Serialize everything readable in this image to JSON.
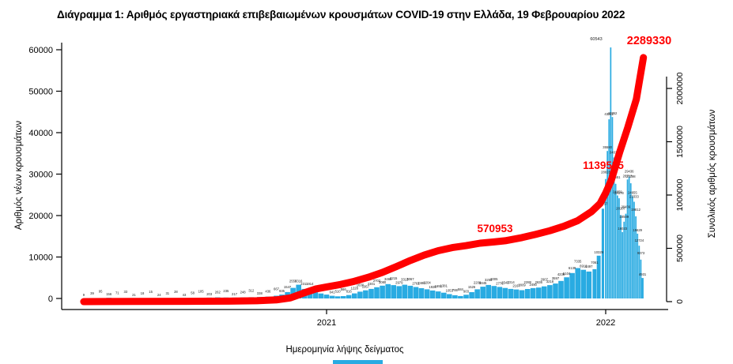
{
  "title": "Διάγραμμα 1: Αριθμός εργαστηριακά επιβεβαιωμένων κρουσμάτων COVID-19 στην Ελλάδα, 19 Φεβρουαρίου 2022",
  "colors": {
    "bar": "#29ABE2",
    "line": "#FF0000",
    "annotation": "#FF0000",
    "text": "#000000",
    "label": "#1a1a1a"
  },
  "axes": {
    "left": {
      "label": "Αριθμός νέων κρουσμάτων",
      "ticks": [
        0,
        10000,
        20000,
        30000,
        40000,
        50000,
        60000
      ]
    },
    "right": {
      "label": "Συνολικός αριθμός κρουσμάτων",
      "ticks": [
        0,
        500000,
        1000000,
        1500000,
        2000000
      ]
    },
    "bottom": {
      "label": "Ημερομηνία λήψης δείγματος",
      "ticks": [
        2021,
        2022
      ]
    }
  },
  "annotations": [
    {
      "id": "milestone-sep-2021",
      "text": "570953"
    },
    {
      "id": "milestone-jan-2022",
      "text": "1139535"
    },
    {
      "id": "total-final",
      "text": "2289330"
    },
    {
      "id": "peak-daily",
      "text": "60543"
    }
  ],
  "chart_data": {
    "type": "bar+line",
    "title": "Διάγραμμα 1: Αριθμός εργαστηριακά επιβεβαιωμένων κρουσμάτων COVID-19 στην Ελλάδα, 19 Φεβρουαρίου 2022",
    "xlabel": "Ημερομηνία λήψης δείγματος",
    "x_unit": "decimal_year",
    "x_range": [
      2020.13,
      2022.135
    ],
    "x_ticks": [
      2021,
      2022
    ],
    "grid": false,
    "legend": "none",
    "bars": {
      "name": "Αριθμός νέων κρουσμάτων",
      "axis": "left",
      "ylim": [
        0,
        60000
      ],
      "points": [
        [
          2020.13,
          9
        ],
        [
          2020.16,
          39
        ],
        [
          2020.19,
          95
        ],
        [
          2020.22,
          156
        ],
        [
          2020.25,
          71
        ],
        [
          2020.28,
          33
        ],
        [
          2020.31,
          21
        ],
        [
          2020.34,
          18
        ],
        [
          2020.37,
          15
        ],
        [
          2020.4,
          24
        ],
        [
          2020.43,
          31
        ],
        [
          2020.46,
          28
        ],
        [
          2020.49,
          43
        ],
        [
          2020.52,
          58
        ],
        [
          2020.55,
          105
        ],
        [
          2020.58,
          203
        ],
        [
          2020.61,
          262
        ],
        [
          2020.64,
          235
        ],
        [
          2020.67,
          217
        ],
        [
          2020.7,
          248
        ],
        [
          2020.73,
          312
        ],
        [
          2020.76,
          338
        ],
        [
          2020.79,
          436
        ],
        [
          2020.82,
          667
        ],
        [
          2020.84,
          935
        ],
        [
          2020.86,
          1547
        ],
        [
          2020.88,
          2556
        ],
        [
          2020.9,
          3316
        ],
        [
          2020.92,
          2311
        ],
        [
          2020.94,
          1914
        ],
        [
          2020.96,
          1499
        ],
        [
          2020.98,
          1192
        ],
        [
          2021.0,
          928
        ],
        [
          2021.02,
          641
        ],
        [
          2021.04,
          510
        ],
        [
          2021.06,
          566
        ],
        [
          2021.08,
          816
        ],
        [
          2021.1,
          1228
        ],
        [
          2021.12,
          1630
        ],
        [
          2021.14,
          1957
        ],
        [
          2021.16,
          2301
        ],
        [
          2021.18,
          2702
        ],
        [
          2021.2,
          3080
        ],
        [
          2021.22,
          3465
        ],
        [
          2021.24,
          3215
        ],
        [
          2021.26,
          2979
        ],
        [
          2021.28,
          3313
        ],
        [
          2021.3,
          3067
        ],
        [
          2021.32,
          2761
        ],
        [
          2021.34,
          2480
        ],
        [
          2021.36,
          2204
        ],
        [
          2021.38,
          1926
        ],
        [
          2021.4,
          1692
        ],
        [
          2021.42,
          1381
        ],
        [
          2021.44,
          1053
        ],
        [
          2021.46,
          788
        ],
        [
          2021.48,
          584
        ],
        [
          2021.5,
          903
        ],
        [
          2021.52,
          1526
        ],
        [
          2021.54,
          2206
        ],
        [
          2021.56,
          2845
        ],
        [
          2021.58,
          3255
        ],
        [
          2021.6,
          3005
        ],
        [
          2021.62,
          2776
        ],
        [
          2021.64,
          2541
        ],
        [
          2021.66,
          2314
        ],
        [
          2021.68,
          2167
        ],
        [
          2021.7,
          2009
        ],
        [
          2021.72,
          2288
        ],
        [
          2021.74,
          2490
        ],
        [
          2021.76,
          2636
        ],
        [
          2021.78,
          2907
        ],
        [
          2021.8,
          3218
        ],
        [
          2021.82,
          3597
        ],
        [
          2021.84,
          4238
        ],
        [
          2021.86,
          5104
        ],
        [
          2021.88,
          6139
        ],
        [
          2021.9,
          7335
        ],
        [
          2021.92,
          6912
        ],
        [
          2021.94,
          6497
        ],
        [
          2021.96,
          7061
        ],
        [
          2021.975,
          10329
        ],
        [
          2021.99,
          21657
        ],
        [
          2022.0,
          28828
        ],
        [
          2022.006,
          35580
        ],
        [
          2022.012,
          43222
        ],
        [
          2022.018,
          60543
        ],
        [
          2022.024,
          43762
        ],
        [
          2022.03,
          34011
        ],
        [
          2022.036,
          27651
        ],
        [
          2022.042,
          24850
        ],
        [
          2022.048,
          24178
        ],
        [
          2022.054,
          20107
        ],
        [
          2022.06,
          16023
        ],
        [
          2022.066,
          18509
        ],
        [
          2022.072,
          20436
        ],
        [
          2022.078,
          28712
        ],
        [
          2022.084,
          29436
        ],
        [
          2022.09,
          27798
        ],
        [
          2022.096,
          24655
        ],
        [
          2022.102,
          23333
        ],
        [
          2022.108,
          19812
        ],
        [
          2022.114,
          15629
        ],
        [
          2022.12,
          12724
        ],
        [
          2022.126,
          9373
        ],
        [
          2022.132,
          4931
        ]
      ]
    },
    "line": {
      "name": "Συνολικός αριθμός κρουσμάτων",
      "axis": "right",
      "ylim": [
        0,
        2000000
      ],
      "points": [
        [
          2020.13,
          0
        ],
        [
          2020.3,
          1700
        ],
        [
          2020.5,
          3100
        ],
        [
          2020.65,
          4500
        ],
        [
          2020.75,
          8000
        ],
        [
          2020.82,
          16000
        ],
        [
          2020.87,
          35000
        ],
        [
          2020.92,
          82000
        ],
        [
          2020.96,
          118000
        ],
        [
          2021.0,
          138000
        ],
        [
          2021.05,
          161000
        ],
        [
          2021.1,
          191000
        ],
        [
          2021.15,
          229000
        ],
        [
          2021.2,
          274000
        ],
        [
          2021.25,
          329000
        ],
        [
          2021.3,
          386000
        ],
        [
          2021.35,
          436000
        ],
        [
          2021.4,
          478000
        ],
        [
          2021.45,
          507000
        ],
        [
          2021.5,
          525000
        ],
        [
          2021.55,
          548000
        ],
        [
          2021.6,
          560000
        ],
        [
          2021.64,
          570953
        ],
        [
          2021.7,
          601000
        ],
        [
          2021.75,
          632000
        ],
        [
          2021.8,
          665000
        ],
        [
          2021.85,
          707000
        ],
        [
          2021.9,
          760000
        ],
        [
          2021.95,
          846000
        ],
        [
          2021.98,
          920000
        ],
        [
          2022.0,
          1020000
        ],
        [
          2022.02,
          1139535
        ],
        [
          2022.05,
          1400000
        ],
        [
          2022.08,
          1640000
        ],
        [
          2022.11,
          1900000
        ],
        [
          2022.135,
          2289330
        ]
      ]
    }
  }
}
